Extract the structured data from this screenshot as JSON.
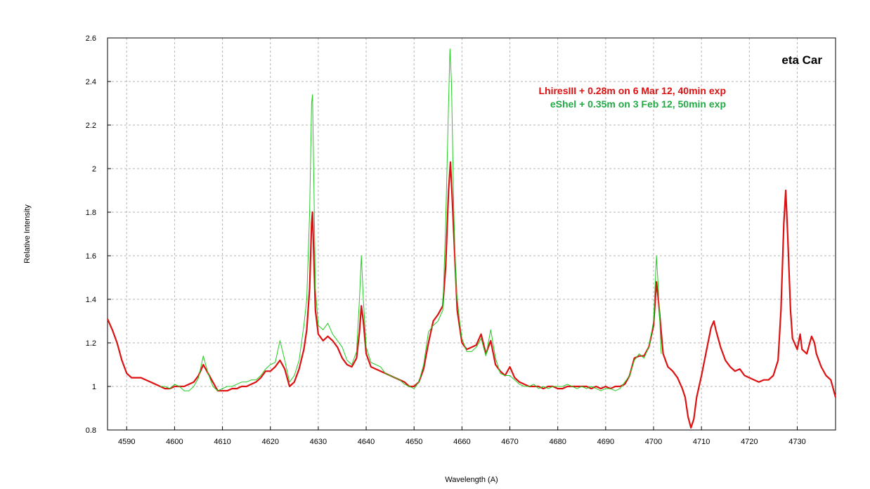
{
  "chart_data": {
    "type": "line",
    "title": "eta Car",
    "xlabel": "Wavelength (A)",
    "ylabel": "Relative Intensity",
    "xlim": [
      4586,
      4738
    ],
    "ylim": [
      0.8,
      2.6
    ],
    "xticks": [
      4590,
      4600,
      4610,
      4620,
      4630,
      4640,
      4650,
      4660,
      4670,
      4680,
      4690,
      4700,
      4710,
      4720,
      4730
    ],
    "yticks": [
      {
        "value": 0.8,
        "label": "0.8"
      },
      {
        "value": 1.0,
        "label": "1"
      },
      {
        "value": 1.2,
        "label": "1.2"
      },
      {
        "value": 1.4,
        "label": "1.4"
      },
      {
        "value": 1.6,
        "label": "1.6"
      },
      {
        "value": 1.8,
        "label": "1.8"
      },
      {
        "value": 2.0,
        "label": "2"
      },
      {
        "value": 2.2,
        "label": "2.2"
      },
      {
        "value": 2.4,
        "label": "2.4"
      },
      {
        "value": 2.6,
        "label": "2.6"
      }
    ],
    "grid": true,
    "legend_position": "top-right",
    "series": [
      {
        "name": "LhiresIII + 0.28m on 6 Mar 12, 40min exp",
        "color": "#dd1111",
        "points": [
          [
            4586,
            1.31
          ],
          [
            4587,
            1.26
          ],
          [
            4588,
            1.2
          ],
          [
            4589,
            1.12
          ],
          [
            4590,
            1.06
          ],
          [
            4591,
            1.04
          ],
          [
            4592,
            1.04
          ],
          [
            4593,
            1.04
          ],
          [
            4594,
            1.03
          ],
          [
            4595,
            1.02
          ],
          [
            4596,
            1.01
          ],
          [
            4597,
            1.0
          ],
          [
            4598,
            0.99
          ],
          [
            4599,
            0.99
          ],
          [
            4600,
            1.0
          ],
          [
            4601,
            1.0
          ],
          [
            4602,
            1.0
          ],
          [
            4603,
            1.01
          ],
          [
            4604,
            1.02
          ],
          [
            4605,
            1.05
          ],
          [
            4606,
            1.1
          ],
          [
            4607,
            1.06
          ],
          [
            4608,
            1.02
          ],
          [
            4609,
            0.98
          ],
          [
            4610,
            0.98
          ],
          [
            4611,
            0.98
          ],
          [
            4612,
            0.99
          ],
          [
            4613,
            0.99
          ],
          [
            4614,
            1.0
          ],
          [
            4615,
            1.0
          ],
          [
            4616,
            1.01
          ],
          [
            4617,
            1.02
          ],
          [
            4618,
            1.04
          ],
          [
            4619,
            1.07
          ],
          [
            4620,
            1.07
          ],
          [
            4621,
            1.09
          ],
          [
            4622,
            1.12
          ],
          [
            4623,
            1.08
          ],
          [
            4624,
            1.0
          ],
          [
            4625,
            1.02
          ],
          [
            4626,
            1.08
          ],
          [
            4627,
            1.17
          ],
          [
            4627.6,
            1.26
          ],
          [
            4628.2,
            1.45
          ],
          [
            4628.6,
            1.75
          ],
          [
            4628.8,
            1.8
          ],
          [
            4629.0,
            1.65
          ],
          [
            4629.4,
            1.35
          ],
          [
            4630,
            1.24
          ],
          [
            4631,
            1.21
          ],
          [
            4632,
            1.23
          ],
          [
            4633,
            1.21
          ],
          [
            4634,
            1.18
          ],
          [
            4635,
            1.13
          ],
          [
            4636,
            1.1
          ],
          [
            4637,
            1.09
          ],
          [
            4638,
            1.13
          ],
          [
            4638.6,
            1.25
          ],
          [
            4639,
            1.37
          ],
          [
            4639.4,
            1.3
          ],
          [
            4640,
            1.15
          ],
          [
            4641,
            1.09
          ],
          [
            4642,
            1.08
          ],
          [
            4643,
            1.07
          ],
          [
            4644,
            1.06
          ],
          [
            4645,
            1.05
          ],
          [
            4646,
            1.04
          ],
          [
            4647,
            1.03
          ],
          [
            4648,
            1.02
          ],
          [
            4649,
            1.0
          ],
          [
            4650,
            1.0
          ],
          [
            4651,
            1.02
          ],
          [
            4652,
            1.08
          ],
          [
            4653,
            1.2
          ],
          [
            4654,
            1.3
          ],
          [
            4655,
            1.33
          ],
          [
            4656,
            1.37
          ],
          [
            4656.6,
            1.55
          ],
          [
            4657.2,
            1.9
          ],
          [
            4657.6,
            2.03
          ],
          [
            4658,
            1.85
          ],
          [
            4658.6,
            1.55
          ],
          [
            4659,
            1.35
          ],
          [
            4660,
            1.2
          ],
          [
            4661,
            1.17
          ],
          [
            4662,
            1.18
          ],
          [
            4663,
            1.19
          ],
          [
            4664,
            1.24
          ],
          [
            4665,
            1.15
          ],
          [
            4666,
            1.21
          ],
          [
            4667,
            1.1
          ],
          [
            4668,
            1.07
          ],
          [
            4669,
            1.05
          ],
          [
            4670,
            1.09
          ],
          [
            4671,
            1.04
          ],
          [
            4672,
            1.02
          ],
          [
            4673,
            1.01
          ],
          [
            4674,
            1.0
          ],
          [
            4675,
            1.0
          ],
          [
            4676,
            1.0
          ],
          [
            4677,
            0.99
          ],
          [
            4678,
            1.0
          ],
          [
            4679,
            1.0
          ],
          [
            4680,
            0.99
          ],
          [
            4681,
            0.99
          ],
          [
            4682,
            1.0
          ],
          [
            4683,
            1.0
          ],
          [
            4684,
            1.0
          ],
          [
            4685,
            1.0
          ],
          [
            4686,
            1.0
          ],
          [
            4687,
            0.99
          ],
          [
            4688,
            1.0
          ],
          [
            4689,
            0.99
          ],
          [
            4690,
            1.0
          ],
          [
            4691,
            0.99
          ],
          [
            4692,
            1.0
          ],
          [
            4693,
            1.0
          ],
          [
            4694,
            1.01
          ],
          [
            4695,
            1.05
          ],
          [
            4696,
            1.13
          ],
          [
            4697,
            1.14
          ],
          [
            4698,
            1.14
          ],
          [
            4699,
            1.18
          ],
          [
            4700,
            1.28
          ],
          [
            4700.6,
            1.48
          ],
          [
            4701,
            1.4
          ],
          [
            4702,
            1.15
          ],
          [
            4703,
            1.09
          ],
          [
            4704,
            1.07
          ],
          [
            4705,
            1.04
          ],
          [
            4706,
            0.99
          ],
          [
            4706.6,
            0.95
          ],
          [
            4707.2,
            0.86
          ],
          [
            4707.8,
            0.81
          ],
          [
            4708.4,
            0.85
          ],
          [
            4709,
            0.95
          ],
          [
            4710,
            1.05
          ],
          [
            4711,
            1.16
          ],
          [
            4712,
            1.27
          ],
          [
            4712.6,
            1.3
          ],
          [
            4713,
            1.26
          ],
          [
            4714,
            1.18
          ],
          [
            4715,
            1.12
          ],
          [
            4716,
            1.09
          ],
          [
            4717,
            1.07
          ],
          [
            4718,
            1.08
          ],
          [
            4719,
            1.05
          ],
          [
            4720,
            1.04
          ],
          [
            4721,
            1.03
          ],
          [
            4722,
            1.02
          ],
          [
            4723,
            1.03
          ],
          [
            4724,
            1.03
          ],
          [
            4725,
            1.05
          ],
          [
            4726,
            1.12
          ],
          [
            4726.6,
            1.35
          ],
          [
            4727.2,
            1.75
          ],
          [
            4727.6,
            1.9
          ],
          [
            4728,
            1.7
          ],
          [
            4728.6,
            1.35
          ],
          [
            4729,
            1.22
          ],
          [
            4730,
            1.17
          ],
          [
            4730.6,
            1.24
          ],
          [
            4731,
            1.17
          ],
          [
            4732,
            1.15
          ],
          [
            4733,
            1.23
          ],
          [
            4733.6,
            1.2
          ],
          [
            4734,
            1.15
          ],
          [
            4735,
            1.09
          ],
          [
            4736,
            1.05
          ],
          [
            4737,
            1.03
          ],
          [
            4738,
            0.95
          ]
        ]
      },
      {
        "name": "eShel + 0.35m on 3 Feb 12, 50min exp",
        "color": "#22cc22",
        "points": [
          [
            4597,
            1.0
          ],
          [
            4598,
            1.0
          ],
          [
            4599,
            0.99
          ],
          [
            4600,
            1.01
          ],
          [
            4601,
            1.0
          ],
          [
            4602,
            0.98
          ],
          [
            4603,
            0.98
          ],
          [
            4604,
            1.0
          ],
          [
            4605,
            1.04
          ],
          [
            4606,
            1.14
          ],
          [
            4607,
            1.06
          ],
          [
            4608,
            1.0
          ],
          [
            4609,
            0.98
          ],
          [
            4610,
            0.99
          ],
          [
            4611,
            1.0
          ],
          [
            4612,
            1.0
          ],
          [
            4613,
            1.01
          ],
          [
            4614,
            1.02
          ],
          [
            4615,
            1.02
          ],
          [
            4616,
            1.03
          ],
          [
            4617,
            1.03
          ],
          [
            4618,
            1.05
          ],
          [
            4619,
            1.08
          ],
          [
            4620,
            1.1
          ],
          [
            4621,
            1.11
          ],
          [
            4622,
            1.21
          ],
          [
            4623,
            1.12
          ],
          [
            4624,
            1.02
          ],
          [
            4625,
            1.05
          ],
          [
            4626,
            1.12
          ],
          [
            4627,
            1.28
          ],
          [
            4627.6,
            1.4
          ],
          [
            4628.2,
            1.8
          ],
          [
            4628.6,
            2.3
          ],
          [
            4628.8,
            2.34
          ],
          [
            4629.0,
            2.05
          ],
          [
            4629.4,
            1.45
          ],
          [
            4630,
            1.28
          ],
          [
            4631,
            1.26
          ],
          [
            4632,
            1.29
          ],
          [
            4633,
            1.24
          ],
          [
            4634,
            1.21
          ],
          [
            4635,
            1.18
          ],
          [
            4636,
            1.12
          ],
          [
            4637,
            1.1
          ],
          [
            4638,
            1.16
          ],
          [
            4638.6,
            1.4
          ],
          [
            4639,
            1.6
          ],
          [
            4639.4,
            1.4
          ],
          [
            4640,
            1.18
          ],
          [
            4641,
            1.11
          ],
          [
            4642,
            1.1
          ],
          [
            4643,
            1.09
          ],
          [
            4644,
            1.06
          ],
          [
            4645,
            1.05
          ],
          [
            4646,
            1.04
          ],
          [
            4647,
            1.03
          ],
          [
            4648,
            1.01
          ],
          [
            4649,
            1.0
          ],
          [
            4650,
            0.99
          ],
          [
            4651,
            1.02
          ],
          [
            4652,
            1.1
          ],
          [
            4653,
            1.25
          ],
          [
            4654,
            1.28
          ],
          [
            4655,
            1.3
          ],
          [
            4656,
            1.35
          ],
          [
            4656.6,
            1.75
          ],
          [
            4657.2,
            2.3
          ],
          [
            4657.5,
            2.55
          ],
          [
            4657.8,
            2.4
          ],
          [
            4658.3,
            1.8
          ],
          [
            4658.8,
            1.45
          ],
          [
            4659.5,
            1.3
          ],
          [
            4660,
            1.22
          ],
          [
            4661,
            1.16
          ],
          [
            4662,
            1.16
          ],
          [
            4663,
            1.18
          ],
          [
            4664,
            1.22
          ],
          [
            4665,
            1.14
          ],
          [
            4666,
            1.26
          ],
          [
            4667,
            1.13
          ],
          [
            4668,
            1.06
          ],
          [
            4669,
            1.05
          ],
          [
            4670,
            1.05
          ],
          [
            4671,
            1.03
          ],
          [
            4672,
            1.01
          ],
          [
            4673,
            1.0
          ],
          [
            4674,
            1.0
          ],
          [
            4675,
            1.01
          ],
          [
            4676,
            0.99
          ],
          [
            4677,
            1.0
          ],
          [
            4678,
            0.99
          ],
          [
            4679,
            1.0
          ],
          [
            4680,
            1.0
          ],
          [
            4681,
            1.0
          ],
          [
            4682,
            1.01
          ],
          [
            4683,
            1.0
          ],
          [
            4684,
            0.99
          ],
          [
            4685,
            1.0
          ],
          [
            4686,
            0.99
          ],
          [
            4687,
            1.0
          ],
          [
            4688,
            0.99
          ],
          [
            4689,
            0.98
          ],
          [
            4690,
            0.99
          ],
          [
            4691,
            0.99
          ],
          [
            4692,
            0.98
          ],
          [
            4693,
            0.99
          ],
          [
            4694,
            1.02
          ],
          [
            4695,
            1.05
          ],
          [
            4696,
            1.12
          ],
          [
            4697,
            1.15
          ],
          [
            4698,
            1.13
          ],
          [
            4699,
            1.18
          ],
          [
            4700,
            1.3
          ],
          [
            4700.6,
            1.6
          ],
          [
            4701,
            1.45
          ],
          [
            4701.6,
            1.15
          ]
        ]
      }
    ]
  }
}
